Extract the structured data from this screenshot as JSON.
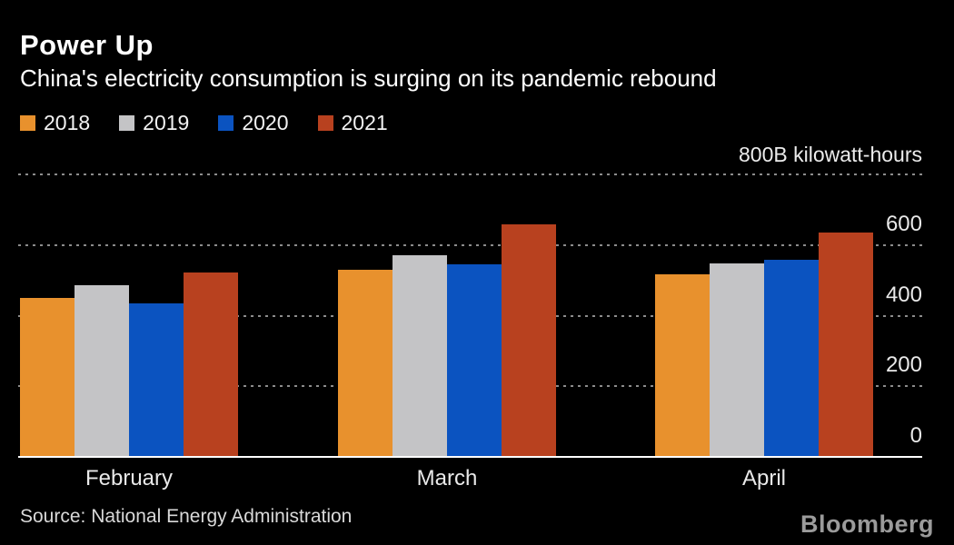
{
  "header": {
    "title": "Power Up",
    "subtitle": "China's electricity consumption is surging on its pandemic rebound"
  },
  "footer": {
    "source": "Source: National Energy Administration",
    "brand": "Bloomberg"
  },
  "colors": {
    "background": "#000000",
    "title_text": "#ffffff",
    "axis_text": "#e9e9e9",
    "gridline": "#8c8c8c",
    "baseline": "#ffffff",
    "brand_text": "#9b9b9b"
  },
  "chart_data": {
    "type": "bar",
    "title": "Power Up",
    "subtitle": "China's electricity consumption is surging on its pandemic rebound",
    "unit_label": "800B kilowatt-hours",
    "categories": [
      "February",
      "March",
      "April"
    ],
    "series": [
      {
        "name": "2018",
        "color": "#E8912D",
        "values": [
          450,
          529,
          517
        ]
      },
      {
        "name": "2019",
        "color": "#C4C4C6",
        "values": [
          485,
          571,
          549
        ]
      },
      {
        "name": "2020",
        "color": "#0B53C0",
        "values": [
          434,
          545,
          558
        ]
      },
      {
        "name": "2021",
        "color": "#B8411F",
        "values": [
          522,
          659,
          635
        ]
      }
    ],
    "ylim": [
      0,
      800
    ],
    "yticks": [
      {
        "value": 0,
        "label": "0"
      },
      {
        "value": 200,
        "label": "200"
      },
      {
        "value": 400,
        "label": "400"
      },
      {
        "value": 600,
        "label": "600"
      },
      {
        "value": 800,
        "label": ""
      }
    ],
    "grid": "horizontal-dotted",
    "legend_position": "top-left",
    "axis_side": "right"
  }
}
